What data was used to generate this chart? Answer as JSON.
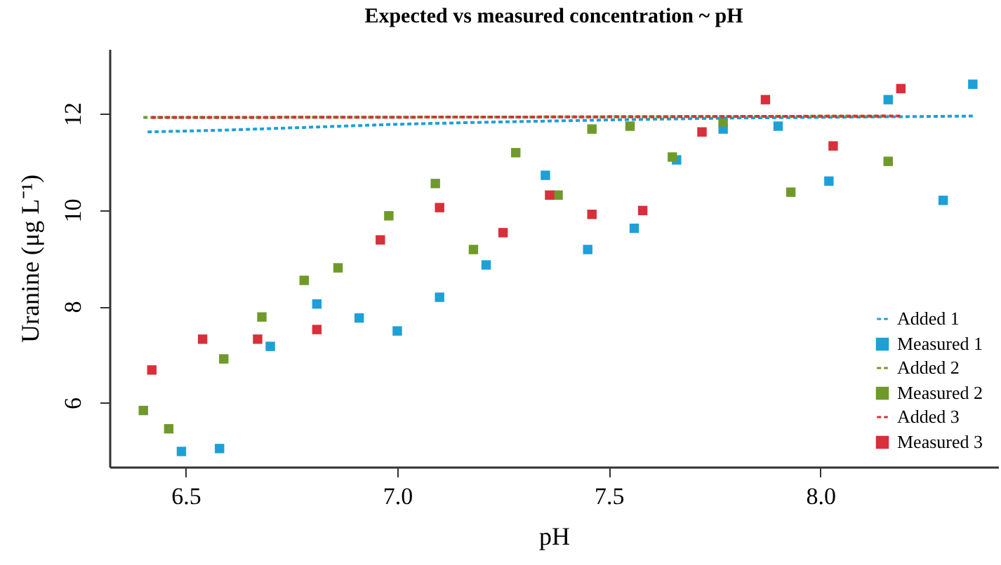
{
  "chart_data": {
    "type": "scatter",
    "title": "Expected vs measured concentration ~ pH",
    "xlabel": "pH",
    "ylabel": "Uranine (μg L⁻¹)",
    "xlim": [
      6.32,
      8.42
    ],
    "xticks": [
      {
        "value": 6.5,
        "label": "6.5"
      },
      {
        "value": 7,
        "label": "7.0"
      },
      {
        "value": 7.5,
        "label": "7.5"
      },
      {
        "value": 8,
        "label": "8.0"
      }
    ],
    "ylim": [
      4.67,
      13.34
    ],
    "yticks": [
      6,
      8,
      10,
      12
    ],
    "grid": false,
    "legend": "bottom right",
    "line_style": "dashed",
    "series": [
      {
        "name": "Added 1",
        "type": "line",
        "marker": "none",
        "color": "#1ea0d6",
        "x": [
          6.41,
          6.6,
          6.8,
          7.0,
          7.2,
          7.5,
          7.8,
          8.1,
          8.36
        ],
        "values": [
          11.62,
          11.66,
          11.72,
          11.78,
          11.82,
          11.87,
          11.91,
          11.93,
          11.95
        ]
      },
      {
        "name": "Measured 1",
        "marker": "square",
        "color": "#1ea0d6",
        "x": [
          6.49,
          6.58,
          6.7,
          6.81,
          6.91,
          7.0,
          7.1,
          7.21,
          7.35,
          7.45,
          7.56,
          7.66,
          7.77,
          7.9,
          8.02,
          8.16,
          8.29,
          8.36
        ],
        "values": [
          4.99,
          5.05,
          7.17,
          8.05,
          7.76,
          7.49,
          8.19,
          8.86,
          10.72,
          9.18,
          9.62,
          11.04,
          11.68,
          11.74,
          10.6,
          12.29,
          10.2,
          12.61
        ]
      },
      {
        "name": "Added 2",
        "type": "line",
        "marker": "none",
        "color": "#6f9a2a",
        "x": [
          6.4,
          7.3,
          8.16
        ],
        "values": [
          11.92,
          11.93,
          11.95
        ]
      },
      {
        "name": "Measured 2",
        "marker": "square",
        "color": "#6f9a2a",
        "x": [
          6.4,
          6.46,
          6.59,
          6.68,
          6.78,
          6.86,
          6.98,
          7.09,
          7.18,
          7.28,
          7.38,
          7.46,
          7.55,
          7.65,
          7.77,
          7.93,
          8.16
        ],
        "values": [
          5.84,
          5.46,
          6.91,
          7.78,
          8.54,
          8.8,
          9.88,
          10.55,
          9.18,
          11.19,
          10.31,
          11.68,
          11.74,
          11.1,
          11.83,
          10.37,
          11.01
        ]
      },
      {
        "name": "Added 3",
        "type": "line",
        "marker": "none",
        "color": "#d7303a",
        "x": [
          6.42,
          7.3,
          8.19
        ],
        "values": [
          11.92,
          11.93,
          11.95
        ]
      },
      {
        "name": "Measured 3",
        "marker": "square",
        "color": "#d7303a",
        "x": [
          6.42,
          6.54,
          6.67,
          6.81,
          6.96,
          7.1,
          7.25,
          7.36,
          7.46,
          7.58,
          7.72,
          7.87,
          8.03,
          8.19
        ],
        "values": [
          6.68,
          7.32,
          7.32,
          7.52,
          9.38,
          10.05,
          9.53,
          10.31,
          9.91,
          9.99,
          11.62,
          12.29,
          11.33,
          12.52
        ]
      }
    ]
  }
}
